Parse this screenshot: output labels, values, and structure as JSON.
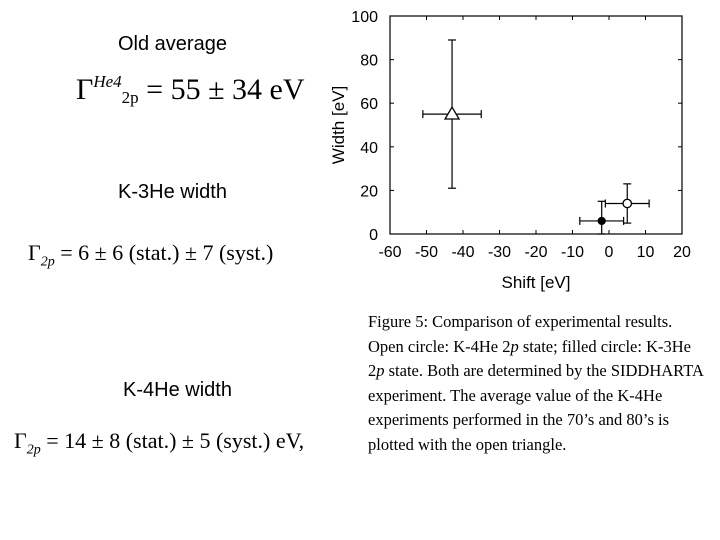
{
  "left_panel": {
    "old_average_title": "Old average",
    "old_formula": {
      "symbol": "Γ",
      "superscript": "He4",
      "subscript": "2p",
      "value_text": "= 55 ± 34 eV"
    },
    "k3he_title": "K-3He width",
    "k3he_formula": {
      "symbol": "Γ",
      "subscript": "2p",
      "value_text": "= 6 ± 6 (stat.) ± 7 (syst.)"
    },
    "k4he_title": "K-4He width",
    "k4he_formula": {
      "symbol": "Γ",
      "subscript": "2p",
      "value_text": "= 14 ± 8 (stat.) ± 5 (syst.) eV,"
    }
  },
  "chart_data": {
    "type": "scatter",
    "xlabel": "Shift [eV]",
    "ylabel": "Width [eV]",
    "xlim": [
      -60,
      20
    ],
    "ylim": [
      0,
      100
    ],
    "xticks": [
      -60,
      -50,
      -40,
      -30,
      -20,
      -10,
      0,
      10,
      20
    ],
    "yticks": [
      0,
      20,
      40,
      60,
      80,
      100
    ],
    "grid": false,
    "points": [
      {
        "marker": "open-triangle",
        "x": -43,
        "y": 55,
        "xerr": 8,
        "yerr_low": 34,
        "yerr_high": 34
      },
      {
        "marker": "filled-circle",
        "x": -2,
        "y": 6,
        "xerr": 6,
        "yerr_low": 6,
        "yerr_high": 9
      },
      {
        "marker": "open-circle",
        "x": 5,
        "y": 14,
        "xerr": 6,
        "yerr_low": 9,
        "yerr_high": 9
      }
    ]
  },
  "caption": {
    "part1": "Figure 5: Comparison of experimental results. Open circle: K-4He 2",
    "p1": "p",
    "part2": " state; filled circle: K-3He 2",
    "p2": "p",
    "part3": " state. Both are determined by the SIDDHARTA experiment. The average value of the K-4He experiments performed in the 70’s and 80’s is plotted with the open triangle."
  }
}
